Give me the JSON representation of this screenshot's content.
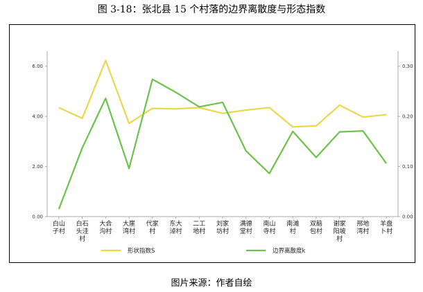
{
  "figure": {
    "title": "图 3-18：张北县 15 个村落的边界离散度与形态指数",
    "source": "图片来源：作者自绘"
  },
  "chart_data": {
    "type": "line",
    "categories": [
      [
        "白山",
        "子村"
      ],
      [
        "白石",
        "头洼",
        "村"
      ],
      [
        "大合",
        "沟村"
      ],
      [
        "大崖",
        "湾村"
      ],
      [
        "代家",
        "村"
      ],
      [
        "东大",
        "淖村"
      ],
      [
        "二工",
        "地村"
      ],
      [
        "刘家",
        "坊村"
      ],
      [
        "满德",
        "堂村"
      ],
      [
        "南山",
        "寺村"
      ],
      [
        "南滩",
        "村"
      ],
      [
        "双脑",
        "包村"
      ],
      [
        "谢家",
        "阳坡",
        "村"
      ],
      [
        "邢地",
        "湾村"
      ],
      [
        "羊盘",
        "卜村"
      ]
    ],
    "series": [
      {
        "name": "形状指数S",
        "axis": "left",
        "color": "#e8d84a",
        "values": [
          4.35,
          3.92,
          6.23,
          3.72,
          4.32,
          4.3,
          4.35,
          4.12,
          4.25,
          4.35,
          3.58,
          3.62,
          4.45,
          3.97,
          4.07
        ]
      },
      {
        "name": "边界离散度k",
        "axis": "right",
        "color": "#6cc24a",
        "values": [
          0.015,
          0.137,
          0.236,
          0.096,
          0.274,
          0.248,
          0.219,
          0.228,
          0.131,
          0.086,
          0.17,
          0.118,
          0.169,
          0.171,
          0.106
        ]
      }
    ],
    "y_left": {
      "ylim": [
        0,
        6.6
      ],
      "ticks": [
        0,
        2,
        4,
        6
      ],
      "tick_labels": [
        "0.00",
        "2.00",
        "4.00",
        "6.00"
      ]
    },
    "y_right": {
      "ylim": [
        0,
        0.33
      ],
      "ticks": [
        0,
        0.1,
        0.2,
        0.3
      ],
      "tick_labels": [
        "0.00",
        "0.10",
        "0.20",
        "0.30"
      ]
    },
    "grid": false,
    "legend": "bottom"
  }
}
